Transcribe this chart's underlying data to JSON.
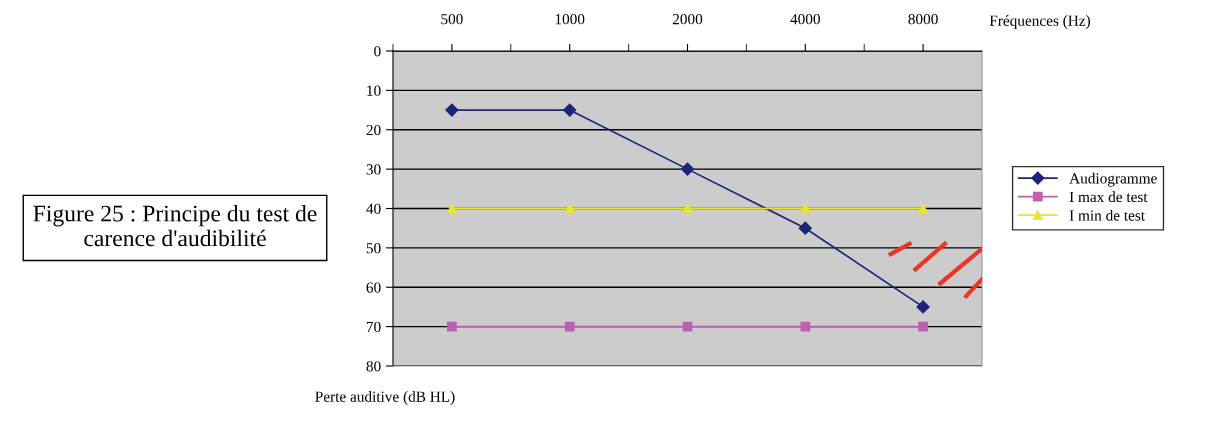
{
  "chart_data": {
    "type": "line",
    "categories": [
      "500",
      "1000",
      "2000",
      "4000",
      "8000"
    ],
    "series": [
      {
        "name": "Audiogramme",
        "color": "#1f237a",
        "marker": "diamond",
        "values": [
          15,
          15,
          30,
          45,
          65
        ]
      },
      {
        "name": "I max de test",
        "color": "#c05fae",
        "marker": "square",
        "values": [
          70,
          70,
          70,
          70,
          70
        ]
      },
      {
        "name": "I min de test",
        "color": "#e6e62e",
        "marker": "triangle",
        "values": [
          40,
          40,
          40,
          40,
          40
        ]
      }
    ],
    "ylim": [
      80,
      0
    ],
    "yticks": [
      0,
      10,
      20,
      30,
      40,
      50,
      60,
      70,
      80
    ],
    "xlabel": "Fréquences (Hz)",
    "ylabel": "Perte auditive (dB HL)",
    "annotations": [
      "Figure 25 : Principe du test de carence d'audibilité"
    ],
    "grid": "y",
    "legend": "right",
    "line_style": "solid"
  }
}
